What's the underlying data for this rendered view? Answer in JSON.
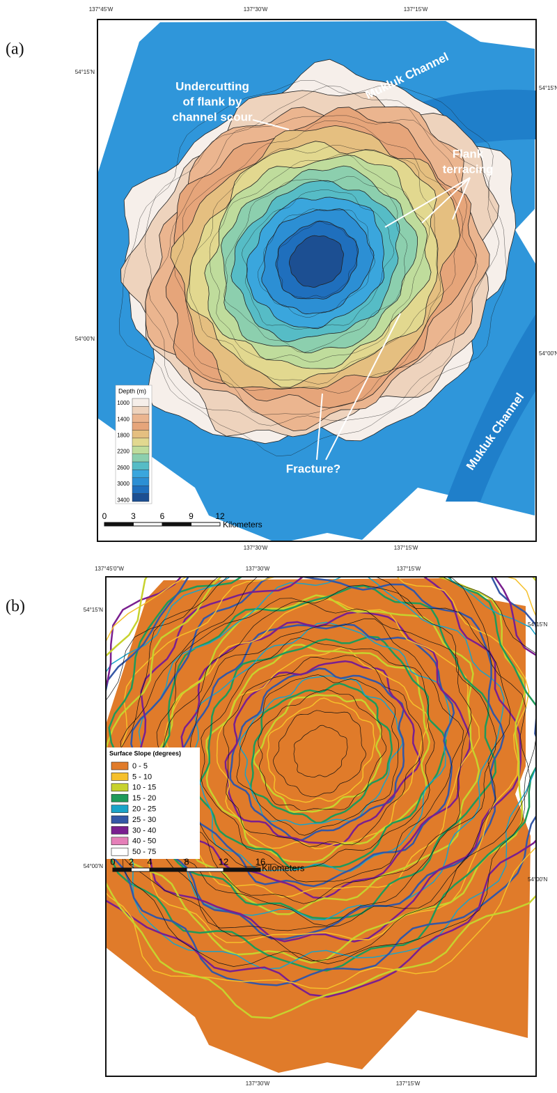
{
  "panel_a": {
    "label": "(a)",
    "top_ticks": [
      "137°45'W",
      "137°30'W",
      "137°15'W"
    ],
    "left_ticks": [
      "54°15'N",
      "54°00'N"
    ],
    "right_ticks": [
      "54°15'N",
      "54°00'N"
    ],
    "bottom_ticks": [
      "137°30'W",
      "137°15'W"
    ],
    "annotations": [
      {
        "lines": [
          "Mukluk Channel"
        ]
      },
      {
        "lines": [
          "Mukluk Channel"
        ]
      },
      {
        "lines": [
          "Undercutting",
          "of flank by",
          "channel scour"
        ]
      },
      {
        "lines": [
          "Flank",
          "terracing"
        ]
      },
      {
        "lines": [
          "Fracture?"
        ]
      }
    ],
    "legend": {
      "title": "Depth (m)",
      "labels": [
        1000,
        1400,
        1800,
        2200,
        2600,
        3000,
        3400
      ],
      "colors": [
        "#f6efea",
        "#eed3bd",
        "#ebb58f",
        "#e6a57a",
        "#e5bf80",
        "#e2d88f",
        "#bfdc9c",
        "#8ccfae",
        "#56bcc6",
        "#3aa6dd",
        "#2c8fd4",
        "#1f6fbd",
        "#1c4f92"
      ]
    },
    "scale": {
      "ticks": [
        0,
        3,
        6,
        9,
        12
      ],
      "unit": "Kilometers"
    }
  },
  "panel_b": {
    "label": "(b)",
    "top_ticks": [
      "137°45'0\"W",
      "137°30'W",
      "137°15'W"
    ],
    "left_ticks": [
      "54°15'N",
      "54°00'N"
    ],
    "right_ticks": [
      "54°15'N",
      "54°00'N"
    ],
    "bottom_ticks": [
      "137°30'W",
      "137°15'W"
    ],
    "legend": {
      "title": "Surface Slope (degrees)",
      "items": [
        {
          "label": "0 - 5",
          "color": "#e07b2a"
        },
        {
          "label": "5 - 10",
          "color": "#f5c02b"
        },
        {
          "label": "10 - 15",
          "color": "#c7d22e"
        },
        {
          "label": "15 - 20",
          "color": "#1f9a5a"
        },
        {
          "label": "20 - 25",
          "color": "#1aa3c8"
        },
        {
          "label": "25 - 30",
          "color": "#3457a6"
        },
        {
          "label": "30 - 40",
          "color": "#7a1f8f"
        },
        {
          "label": "40 - 50",
          "color": "#e57fb8"
        },
        {
          "label": "50 - 75",
          "color": "#ffffff"
        }
      ]
    },
    "scale": {
      "ticks": [
        0,
        2,
        4,
        8,
        12,
        16
      ],
      "unit": "Kilometers"
    }
  }
}
